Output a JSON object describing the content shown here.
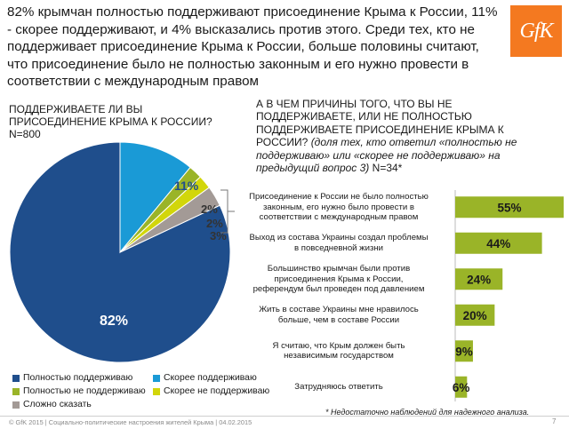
{
  "headline": "82% крымчан полностью поддерживают присоединение Крыма к России, 11% - скорее поддерживают, и  4% высказались против этого. Среди тех, кто не поддерживает присоединение Крыма к России, больше половины считают, что присоединение было не полностью законным и его нужно провести в соответствии с международным правом",
  "logo": "GfK",
  "left_question": {
    "text": "ПОДДЕРЖИВАЕТЕ ЛИ ВЫ ПРИСОЕДИНЕНИЕ КРЫМА К РОССИИ?",
    "n": "N=800"
  },
  "right_question": {
    "caps": "А В ЧЕМ ПРИЧИНЫ ТОГО, ЧТО ВЫ НЕ ПОДДЕРЖИВАЕТЕ, ИЛИ НЕ ПОЛНОСТЬЮ ПОДДЕРЖИВАЕТЕ ПРИСОЕДИНЕНИЕ КРЫМА К РОССИИ?",
    "italic": "(доля тех, кто ответил «полностью не поддерживаю» или «скорее не поддерживаю» на предыдущий вопрос 3)",
    "n": "N=34*"
  },
  "chart_data": [
    {
      "type": "pie",
      "categories": [
        "Полностью поддерживаю",
        "Скорее поддерживаю",
        "Полностью не поддерживаю",
        "Скорее не поддерживаю",
        "Сложно сказать"
      ],
      "values": [
        82,
        11,
        2,
        2,
        3
      ],
      "labels": [
        "82%",
        "11%",
        "2%",
        "2%",
        "3%"
      ],
      "colors": [
        "#1f4e8c",
        "#1a9ad6",
        "#9ab428",
        "#d2d60a",
        "#a39a96"
      ],
      "legend_position": "bottom-left"
    },
    {
      "type": "bar",
      "orientation": "horizontal",
      "categories": [
        "Присоединение к России не было полностью законным, его нужно было провести в соответствии с международным правом",
        "Выход из состава Украины создал проблемы в повседневной жизни",
        "Большинство крымчан были против присоединения Крыма к России, референдум был проведен под давлением",
        "Жить в составе Украины мне нравилось больше, чем в составе России",
        "Я считаю, что Крым должен быть независимым государством",
        "Затрудняюсь ответить"
      ],
      "category_lines": [
        [
          "Присоединение к России не было полностью",
          "законным, его нужно было провести в",
          "соответствии с международным правом"
        ],
        [
          "Выход из состава Украины создал проблемы",
          "в повседневной жизни"
        ],
        [
          "Большинство крымчан были против",
          "присоединения Крыма к России,",
          "референдум был проведен под давлением"
        ],
        [
          "Жить в составе Украины мне нравилось",
          "больше, чем в составе России"
        ],
        [
          "Я считаю, что Крым должен быть",
          "независимым государством"
        ],
        [
          "Затрудняюсь ответить"
        ]
      ],
      "values": [
        55,
        44,
        24,
        20,
        9,
        6
      ],
      "labels": [
        "55%",
        "44%",
        "24%",
        "20%",
        "9%",
        "6%"
      ],
      "color": "#9ab428",
      "xlim": [
        0,
        55
      ]
    }
  ],
  "legend": [
    {
      "label": "Полностью поддерживаю",
      "color": "#1f4e8c"
    },
    {
      "label": "Скорее поддерживаю",
      "color": "#1a9ad6"
    },
    {
      "label": "Полностью не поддерживаю",
      "color": "#9ab428"
    },
    {
      "label": "Скорее не поддерживаю",
      "color": "#d2d60a"
    },
    {
      "label": "Сложно сказать",
      "color": "#a39a96"
    }
  ],
  "note": "* Недостаточно наблюдений для надежного анализа.",
  "footer": "© GfK 2015 | Социально-политические настроения жителей Крыма | 04.02.2015",
  "page_number": "7"
}
